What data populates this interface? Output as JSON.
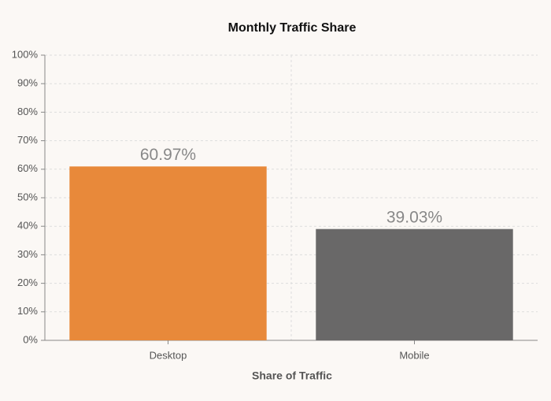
{
  "chart_data": {
    "type": "bar",
    "title": "Monthly Traffic Share",
    "x_label": "Share of Traffic",
    "categories": [
      "Desktop",
      "Mobile"
    ],
    "values": [
      60.97,
      39.03
    ],
    "value_labels": [
      "60.97%",
      "39.03%"
    ],
    "colors": [
      "#e8893a",
      "#696868"
    ],
    "ylim": [
      0,
      100
    ],
    "yticks": [
      {
        "value": 0,
        "label": "0%"
      },
      {
        "value": 10,
        "label": "10%"
      },
      {
        "value": 20,
        "label": "20%"
      },
      {
        "value": 30,
        "label": "30%"
      },
      {
        "value": 40,
        "label": "40%"
      },
      {
        "value": 50,
        "label": "50%"
      },
      {
        "value": 60,
        "label": "60%"
      },
      {
        "value": 70,
        "label": "70%"
      },
      {
        "value": 80,
        "label": "80%"
      },
      {
        "value": 90,
        "label": "90%"
      },
      {
        "value": 100,
        "label": "100%"
      }
    ],
    "grid": true
  }
}
